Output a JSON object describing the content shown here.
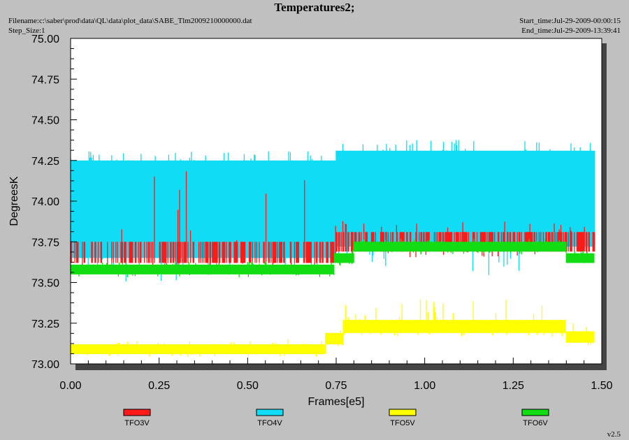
{
  "header": {
    "title": "Temperatures2;",
    "filename": "Filename:c:\\saber\\prod\\data\\QL\\data\\plot_data\\SABE_Tlm2009210000000.dat",
    "step_size": "Step_Size:1",
    "start_time": "Start_time:Jul-29-2009-00:00:15",
    "end_time": "End_time:Jul-29-2009-13:39:41",
    "version": "v2.5"
  },
  "colors": {
    "TFO3V": "#ff1a1a",
    "TFO4V": "#10dcf5",
    "TFO5V": "#ffff00",
    "TFO6V": "#12dd12",
    "plot_background": "#ffffff",
    "page_background": "#c0c0c0"
  },
  "chart_data": {
    "type": "line",
    "title": "Temperatures2;",
    "xlabel": "Frames[e5]",
    "ylabel": "DegreesK",
    "xlim": [
      0.0,
      1.5
    ],
    "ylim": [
      73.0,
      75.0
    ],
    "x_ticks": [
      "0.00",
      "0.25",
      "0.50",
      "0.75",
      "1.00",
      "1.25",
      "1.50"
    ],
    "y_ticks": [
      "73.00",
      "73.25",
      "73.50",
      "73.75",
      "74.00",
      "74.25",
      "74.50",
      "74.75",
      "75.00"
    ],
    "grid": false,
    "legend_position": "bottom",
    "series": [
      {
        "name": "TFO3V",
        "description": "noisy band, mostly 73.62-73.75 before 0.75e5, 73.69-73.81 after",
        "segments": [
          {
            "x_start": 0.0,
            "x_end": 0.75,
            "low": 73.62,
            "high": 73.75,
            "spike_high": 74.19
          },
          {
            "x_start": 0.75,
            "x_end": 1.48,
            "low": 73.69,
            "high": 73.81,
            "spike_high": 73.88
          }
        ]
      },
      {
        "name": "TFO4V",
        "description": "wide noisy band",
        "segments": [
          {
            "x_start": 0.0,
            "x_end": 0.75,
            "low": 73.65,
            "high": 74.25,
            "spike_high": 74.31
          },
          {
            "x_start": 0.75,
            "x_end": 1.48,
            "low": 73.72,
            "high": 74.31,
            "spike_high": 74.38
          }
        ]
      },
      {
        "name": "TFO5V",
        "description": "low band",
        "segments": [
          {
            "x_start": 0.0,
            "x_end": 0.72,
            "low": 73.06,
            "high": 73.12,
            "spike_high": 73.15
          },
          {
            "x_start": 0.72,
            "x_end": 0.77,
            "low": 73.12,
            "high": 73.19,
            "spike_high": 73.25
          },
          {
            "x_start": 0.77,
            "x_end": 1.4,
            "low": 73.19,
            "high": 73.27,
            "spike_high": 73.4
          },
          {
            "x_start": 1.4,
            "x_end": 1.48,
            "low": 73.13,
            "high": 73.2,
            "spike_high": 73.25
          }
        ]
      },
      {
        "name": "TFO6V",
        "description": "green band",
        "segments": [
          {
            "x_start": 0.0,
            "x_end": 0.745,
            "low": 73.55,
            "high": 73.61,
            "spike_high": 73.63
          },
          {
            "x_start": 0.745,
            "x_end": 0.8,
            "low": 73.62,
            "high": 73.68,
            "spike_high": 73.7
          },
          {
            "x_start": 0.8,
            "x_end": 1.4,
            "low": 73.69,
            "high": 73.75,
            "spike_high": 73.77
          },
          {
            "x_start": 1.4,
            "x_end": 1.48,
            "low": 73.62,
            "high": 73.68,
            "spike_high": 73.7
          }
        ]
      }
    ],
    "legend": [
      "TFO3V",
      "TFO4V",
      "TFO5V",
      "TFO6V"
    ]
  }
}
